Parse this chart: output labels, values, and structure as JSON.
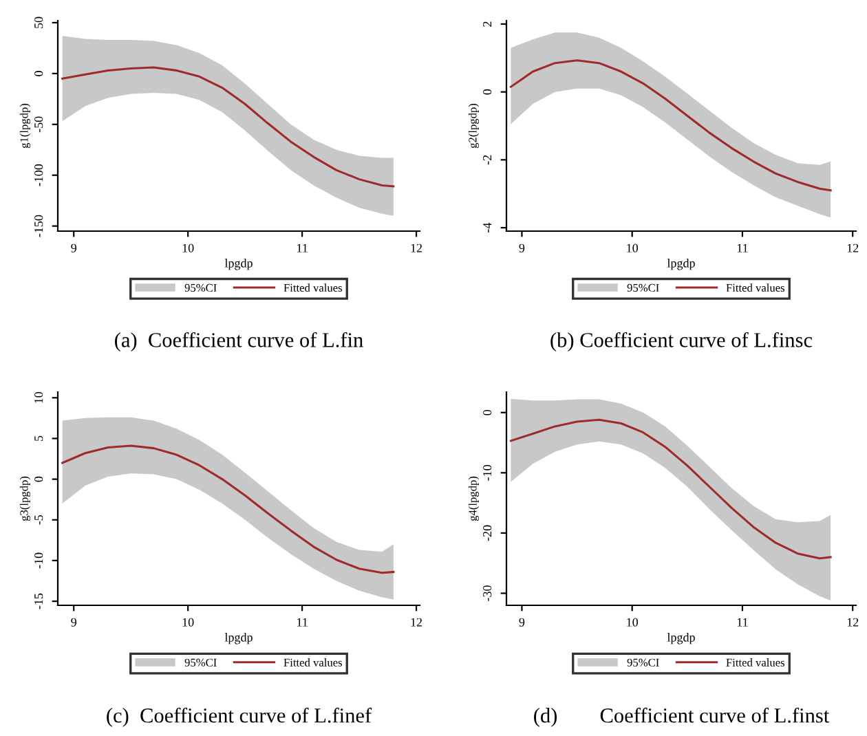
{
  "chart_data": [
    {
      "type": "line",
      "title": "(a)  Coefficient curve of L.fin",
      "xlabel": "lpgdp",
      "ylabel": "g1(lpgdp)",
      "annotations": [
        "95%CI"
      ],
      "xlim": [
        8.86,
        12.03
      ],
      "xticks": [
        9,
        10,
        11,
        12
      ],
      "ylim": [
        -155,
        52
      ],
      "yticks": [
        -150,
        -100,
        -50,
        0,
        50
      ],
      "grid": false,
      "legend": "bottom",
      "x": [
        8.9,
        9.1,
        9.3,
        9.5,
        9.7,
        9.9,
        10.1,
        10.3,
        10.5,
        10.7,
        10.9,
        11.1,
        11.3,
        11.5,
        11.7,
        11.8
      ],
      "series": [
        {
          "name": "Fitted values",
          "color": "#9e2a2b",
          "values": [
            -5,
            -1,
            3,
            5,
            6,
            3,
            -3,
            -14,
            -30,
            -49,
            -67,
            -82,
            -95,
            -104,
            -110,
            -111
          ],
          "lower": [
            -47,
            -32,
            -24,
            -20,
            -19,
            -20,
            -26,
            -38,
            -56,
            -76,
            -95,
            -110,
            -122,
            -132,
            -138,
            -140
          ],
          "upper": [
            37,
            34,
            33,
            33,
            32,
            28,
            20,
            8,
            -10,
            -30,
            -50,
            -65,
            -75,
            -81,
            -83,
            -83
          ]
        }
      ]
    },
    {
      "type": "line",
      "title": "(b) Coefficient curve of L.finsc",
      "xlabel": "lpgdp",
      "ylabel": "g2(lpgdp)",
      "annotations": [
        "95%CI"
      ],
      "xlim": [
        8.86,
        12.03
      ],
      "xticks": [
        9,
        10,
        11,
        12
      ],
      "ylim": [
        -4.1,
        2.1
      ],
      "yticks": [
        -4,
        -2,
        0,
        2
      ],
      "grid": false,
      "legend": "bottom",
      "x": [
        8.9,
        9.1,
        9.3,
        9.5,
        9.7,
        9.9,
        10.1,
        10.3,
        10.5,
        10.7,
        10.9,
        11.1,
        11.3,
        11.5,
        11.7,
        11.8
      ],
      "series": [
        {
          "name": "Fitted values",
          "color": "#9e2a2b",
          "values": [
            0.15,
            0.6,
            0.85,
            0.93,
            0.85,
            0.6,
            0.25,
            -0.2,
            -0.7,
            -1.2,
            -1.65,
            -2.05,
            -2.4,
            -2.65,
            -2.85,
            -2.9
          ],
          "lower": [
            -0.95,
            -0.35,
            0.0,
            0.1,
            0.1,
            -0.1,
            -0.45,
            -0.9,
            -1.4,
            -1.9,
            -2.35,
            -2.75,
            -3.1,
            -3.35,
            -3.6,
            -3.7
          ],
          "upper": [
            1.3,
            1.55,
            1.75,
            1.75,
            1.6,
            1.3,
            0.9,
            0.45,
            -0.05,
            -0.55,
            -1.05,
            -1.5,
            -1.85,
            -2.1,
            -2.15,
            -2.05
          ]
        }
      ]
    },
    {
      "type": "line",
      "title": "(c)  Coefficient curve of L.finef",
      "xlabel": "lpgdp",
      "ylabel": "g3(lpgdp)",
      "annotations": [
        "95%CI"
      ],
      "xlim": [
        8.86,
        12.03
      ],
      "xticks": [
        9,
        10,
        11,
        12
      ],
      "ylim": [
        -15.5,
        10.7
      ],
      "yticks": [
        -15,
        -10,
        -5,
        0,
        5,
        10
      ],
      "grid": false,
      "legend": "bottom",
      "x": [
        8.9,
        9.1,
        9.3,
        9.5,
        9.7,
        9.9,
        10.1,
        10.3,
        10.5,
        10.7,
        10.9,
        11.1,
        11.3,
        11.5,
        11.7,
        11.8
      ],
      "series": [
        {
          "name": "Fitted values",
          "color": "#9e2a2b",
          "values": [
            2,
            3.2,
            3.9,
            4.1,
            3.8,
            3,
            1.7,
            0,
            -2,
            -4.2,
            -6.3,
            -8.3,
            -9.9,
            -11,
            -11.5,
            -11.4
          ],
          "lower": [
            -3,
            -0.8,
            0.3,
            0.7,
            0.6,
            0,
            -1.3,
            -3,
            -5,
            -7.2,
            -9.2,
            -11,
            -12.5,
            -13.7,
            -14.5,
            -14.8
          ],
          "upper": [
            7.2,
            7.5,
            7.6,
            7.6,
            7.2,
            6.2,
            4.8,
            3,
            0.8,
            -1.5,
            -3.8,
            -6,
            -7.7,
            -8.7,
            -8.9,
            -8.0
          ]
        }
      ]
    },
    {
      "type": "line",
      "title": "(d)        Coefficient curve of L.finst",
      "xlabel": "lpgdp",
      "ylabel": "g4(lpgdp)",
      "annotations": [
        "95%CI"
      ],
      "xlim": [
        8.86,
        12.03
      ],
      "xticks": [
        9,
        10,
        11,
        12
      ],
      "ylim": [
        -32,
        3.4
      ],
      "yticks": [
        -30,
        -20,
        -10,
        0
      ],
      "grid": false,
      "legend": "bottom",
      "x": [
        8.9,
        9.1,
        9.3,
        9.5,
        9.7,
        9.9,
        10.1,
        10.3,
        10.5,
        10.7,
        10.9,
        11.1,
        11.3,
        11.5,
        11.7,
        11.8
      ],
      "series": [
        {
          "name": "Fitted values",
          "color": "#9e2a2b",
          "values": [
            -4.7,
            -3.5,
            -2.3,
            -1.5,
            -1.2,
            -1.8,
            -3.3,
            -5.7,
            -8.8,
            -12.3,
            -15.8,
            -19,
            -21.6,
            -23.4,
            -24.2,
            -24
          ],
          "lower": [
            -11.5,
            -8.5,
            -6.5,
            -5.3,
            -4.8,
            -5.3,
            -6.8,
            -9.2,
            -12.3,
            -16,
            -19.5,
            -22.8,
            -26,
            -28.5,
            -30.5,
            -31.2
          ],
          "upper": [
            2.3,
            2.0,
            2.0,
            2.2,
            2.2,
            1.5,
            0,
            -2.3,
            -5.5,
            -9,
            -12.5,
            -15.5,
            -17.7,
            -18.2,
            -18,
            -17
          ]
        }
      ]
    }
  ]
}
